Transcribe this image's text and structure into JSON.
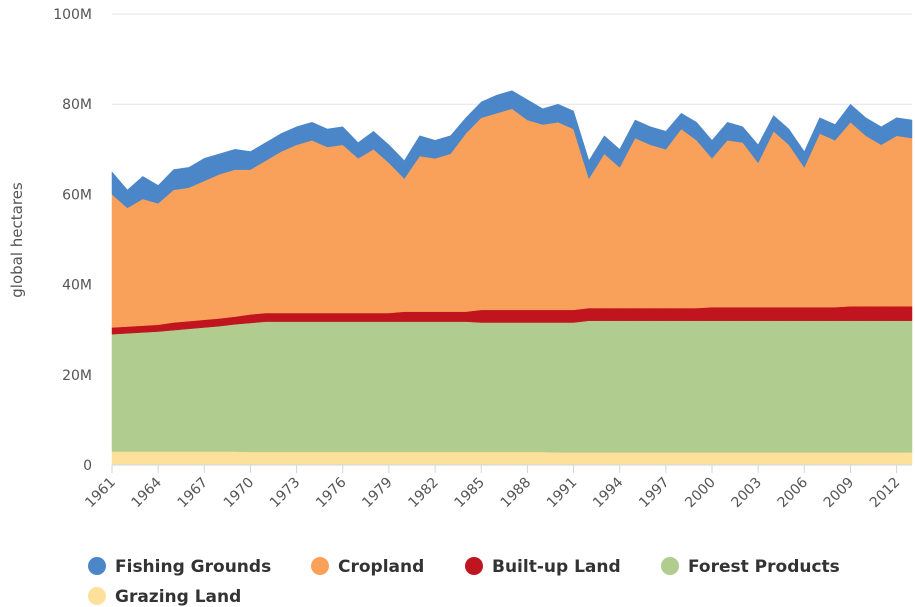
{
  "chart_data": {
    "type": "stacked_area",
    "y_axis_label": "global hectares",
    "x": [
      1961,
      1962,
      1963,
      1964,
      1965,
      1966,
      1967,
      1968,
      1969,
      1970,
      1971,
      1972,
      1973,
      1974,
      1975,
      1976,
      1977,
      1978,
      1979,
      1980,
      1981,
      1982,
      1983,
      1984,
      1985,
      1986,
      1987,
      1988,
      1989,
      1990,
      1991,
      1992,
      1993,
      1994,
      1995,
      1996,
      1997,
      1998,
      1999,
      2000,
      2001,
      2002,
      2003,
      2004,
      2005,
      2006,
      2007,
      2008,
      2009,
      2010,
      2011,
      2012,
      2013
    ],
    "xlim": [
      1961,
      2013
    ],
    "xticks": [
      1961,
      1964,
      1967,
      1970,
      1973,
      1976,
      1979,
      1982,
      1985,
      1988,
      1991,
      1994,
      1997,
      2000,
      2003,
      2006,
      2009,
      2012
    ],
    "ylim": [
      0,
      100000000
    ],
    "yticks": [
      0,
      {
        "value": 20000000,
        "label": "20M"
      },
      {
        "value": 40000000,
        "label": "40M"
      },
      {
        "value": 60000000,
        "label": "60M"
      },
      {
        "value": 80000000,
        "label": "80M"
      },
      {
        "value": 100000000,
        "label": "100M"
      }
    ],
    "grid": true,
    "legend": "bottom",
    "series": [
      {
        "name": "Fishing Grounds",
        "color": "#4a86c8",
        "values": [
          5000000,
          4000000,
          5000000,
          4000000,
          4500000,
          4500000,
          5000000,
          4500000,
          4500000,
          4000000,
          4000000,
          4000000,
          4000000,
          4000000,
          4000000,
          4000000,
          3500000,
          4000000,
          4000000,
          4000000,
          4500000,
          4000000,
          4000000,
          3500000,
          3500000,
          4000000,
          4000000,
          4500000,
          3500000,
          4000000,
          4000000,
          4000000,
          4000000,
          4000000,
          4000000,
          4000000,
          4000000,
          3500000,
          4000000,
          4000000,
          4000000,
          3500000,
          4000000,
          3500000,
          3500000,
          3500000,
          3500000,
          3500000,
          4000000,
          4000000,
          4000000,
          4000000,
          4000000
        ]
      },
      {
        "name": "Cropland",
        "color": "#f9a05a",
        "values": [
          29500000,
          26300000,
          28100000,
          26900000,
          29400000,
          29600000,
          30800000,
          32000000,
          32600000,
          32100000,
          33800000,
          35800000,
          37300000,
          38300000,
          36800000,
          37300000,
          34300000,
          36300000,
          33300000,
          29500000,
          34500000,
          34000000,
          35000000,
          39500000,
          42600000,
          43600000,
          44600000,
          42100000,
          41100000,
          41600000,
          40100000,
          28700000,
          34200000,
          31200000,
          37700000,
          36200000,
          35200000,
          39700000,
          37200000,
          33000000,
          37000000,
          36500000,
          32000000,
          39000000,
          36000000,
          31000000,
          38500000,
          37000000,
          40800000,
          37800000,
          35800000,
          37800000,
          37300000
        ]
      },
      {
        "name": "Built-up Land",
        "color": "#c0141e",
        "values": [
          1500000,
          1500000,
          1500000,
          1500000,
          1700000,
          1700000,
          1700000,
          1700000,
          1700000,
          1900000,
          1900000,
          1900000,
          1900000,
          1900000,
          1900000,
          1900000,
          1900000,
          1900000,
          1900000,
          2200000,
          2200000,
          2200000,
          2200000,
          2200000,
          2800000,
          2800000,
          2800000,
          2800000,
          2800000,
          2800000,
          2800000,
          2800000,
          2800000,
          2800000,
          2800000,
          2800000,
          2800000,
          2800000,
          2800000,
          3000000,
          3000000,
          3000000,
          3000000,
          3000000,
          3000000,
          3000000,
          3000000,
          3000000,
          3200000,
          3200000,
          3200000,
          3200000,
          3200000
        ]
      },
      {
        "name": "Forest Products",
        "color": "#b0cc8e",
        "values": [
          26000000,
          26200000,
          26400000,
          26600000,
          26900000,
          27200000,
          27500000,
          27800000,
          28200000,
          28600000,
          28900000,
          28900000,
          28900000,
          28900000,
          28900000,
          28900000,
          28900000,
          28900000,
          28900000,
          28900000,
          28900000,
          28900000,
          28900000,
          28900000,
          28700000,
          28700000,
          28700000,
          28700000,
          28700000,
          28800000,
          28800000,
          29200000,
          29200000,
          29200000,
          29200000,
          29200000,
          29200000,
          29200000,
          29200000,
          29200000,
          29200000,
          29200000,
          29200000,
          29200000,
          29200000,
          29200000,
          29200000,
          29200000,
          29200000,
          29200000,
          29200000,
          29200000,
          29200000
        ]
      },
      {
        "name": "Grazing Land",
        "color": "#fde099",
        "values": [
          3000000,
          3000000,
          3000000,
          3000000,
          3000000,
          3000000,
          3000000,
          3000000,
          3000000,
          2900000,
          2900000,
          2900000,
          2900000,
          2900000,
          2900000,
          2900000,
          2900000,
          2900000,
          2900000,
          2900000,
          2900000,
          2900000,
          2900000,
          2900000,
          2900000,
          2900000,
          2900000,
          2900000,
          2900000,
          2800000,
          2800000,
          2800000,
          2800000,
          2800000,
          2800000,
          2800000,
          2800000,
          2800000,
          2800000,
          2800000,
          2800000,
          2800000,
          2800000,
          2800000,
          2800000,
          2800000,
          2800000,
          2800000,
          2800000,
          2800000,
          2800000,
          2800000,
          2800000
        ]
      }
    ]
  }
}
